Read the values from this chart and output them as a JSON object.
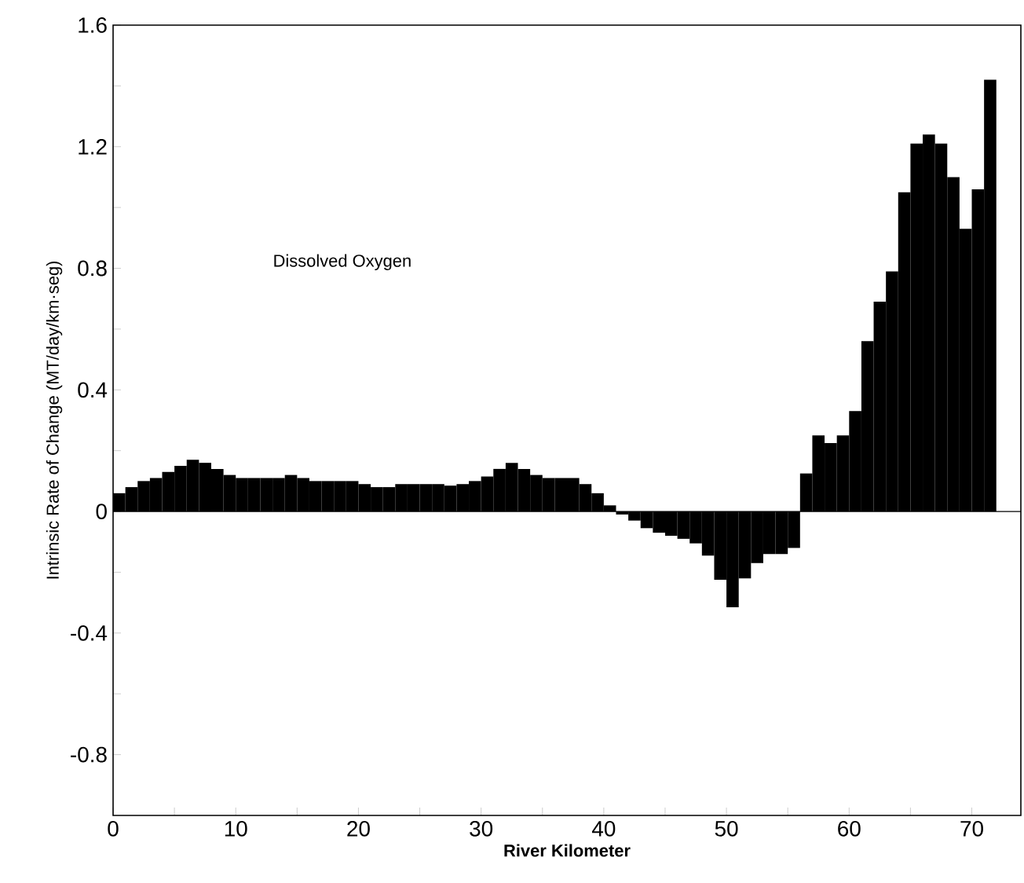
{
  "chart_data": {
    "type": "bar",
    "xlabel": "River Kilometer",
    "ylabel": "Intrinsic Rate of Change (MT/day/km·seg)",
    "annotations": [
      "Dissolved Oxygen"
    ],
    "x": [
      0.5,
      1.5,
      2.5,
      3.5,
      4.5,
      5.5,
      6.5,
      7.5,
      8.5,
      9.5,
      10.5,
      11.5,
      12.5,
      13.5,
      14.5,
      15.5,
      16.5,
      17.5,
      18.5,
      19.5,
      20.5,
      21.5,
      22.5,
      23.5,
      24.5,
      25.5,
      26.5,
      27.5,
      28.5,
      29.5,
      30.5,
      31.5,
      32.5,
      33.5,
      34.5,
      35.5,
      36.5,
      37.5,
      38.5,
      39.5,
      40.5,
      41.5,
      42.5,
      43.5,
      44.5,
      45.5,
      46.5,
      47.5,
      48.5,
      49.5,
      50.5,
      51.5,
      52.5,
      53.5,
      54.5,
      55.5,
      56.5,
      57.5,
      58.5,
      59.5,
      60.5,
      61.5,
      62.5,
      63.5,
      64.5,
      65.5,
      66.5,
      67.5,
      68.5,
      69.5,
      70.5,
      71.5
    ],
    "values": [
      0.06,
      0.08,
      0.1,
      0.11,
      0.13,
      0.15,
      0.17,
      0.16,
      0.14,
      0.12,
      0.11,
      0.11,
      0.11,
      0.11,
      0.12,
      0.11,
      0.1,
      0.1,
      0.1,
      0.1,
      0.09,
      0.08,
      0.08,
      0.09,
      0.09,
      0.09,
      0.09,
      0.085,
      0.09,
      0.1,
      0.115,
      0.14,
      0.16,
      0.14,
      0.12,
      0.11,
      0.11,
      0.11,
      0.09,
      0.06,
      0.02,
      -0.01,
      -0.03,
      -0.055,
      -0.07,
      -0.08,
      -0.09,
      -0.105,
      -0.145,
      -0.225,
      -0.315,
      -0.22,
      -0.17,
      -0.14,
      -0.14,
      -0.12,
      0.125,
      0.25,
      0.225,
      0.25,
      0.33,
      0.56,
      0.69,
      0.79,
      1.05,
      1.21,
      1.24,
      1.21,
      1.1,
      0.93,
      1.06,
      1.42
    ],
    "color": "#000000",
    "xlim": [
      0,
      74
    ],
    "ylim": [
      -1.0,
      1.6
    ],
    "xticks": [
      0,
      {
        "value": 5,
        "label": null
      },
      10,
      {
        "value": 15,
        "label": null
      },
      20,
      {
        "value": 25,
        "label": null
      },
      30,
      {
        "value": 35,
        "label": null
      },
      40,
      {
        "value": 45,
        "label": null
      },
      50,
      {
        "value": 55,
        "label": null
      },
      60,
      {
        "value": 65,
        "label": null
      },
      70
    ],
    "yticks": [
      -0.8,
      {
        "value": -0.6,
        "label": null
      },
      -0.4,
      {
        "value": -0.2,
        "label": null
      },
      0,
      {
        "value": 0.2,
        "label": null
      },
      0.4,
      {
        "value": 0.6,
        "label": null
      },
      0.8,
      {
        "value": 1.0,
        "label": null
      },
      1.2,
      {
        "value": 1.4,
        "label": null
      },
      1.6
    ],
    "ref_lines": [
      {
        "axis": "y",
        "value": 0,
        "color": "#000000"
      }
    ]
  }
}
